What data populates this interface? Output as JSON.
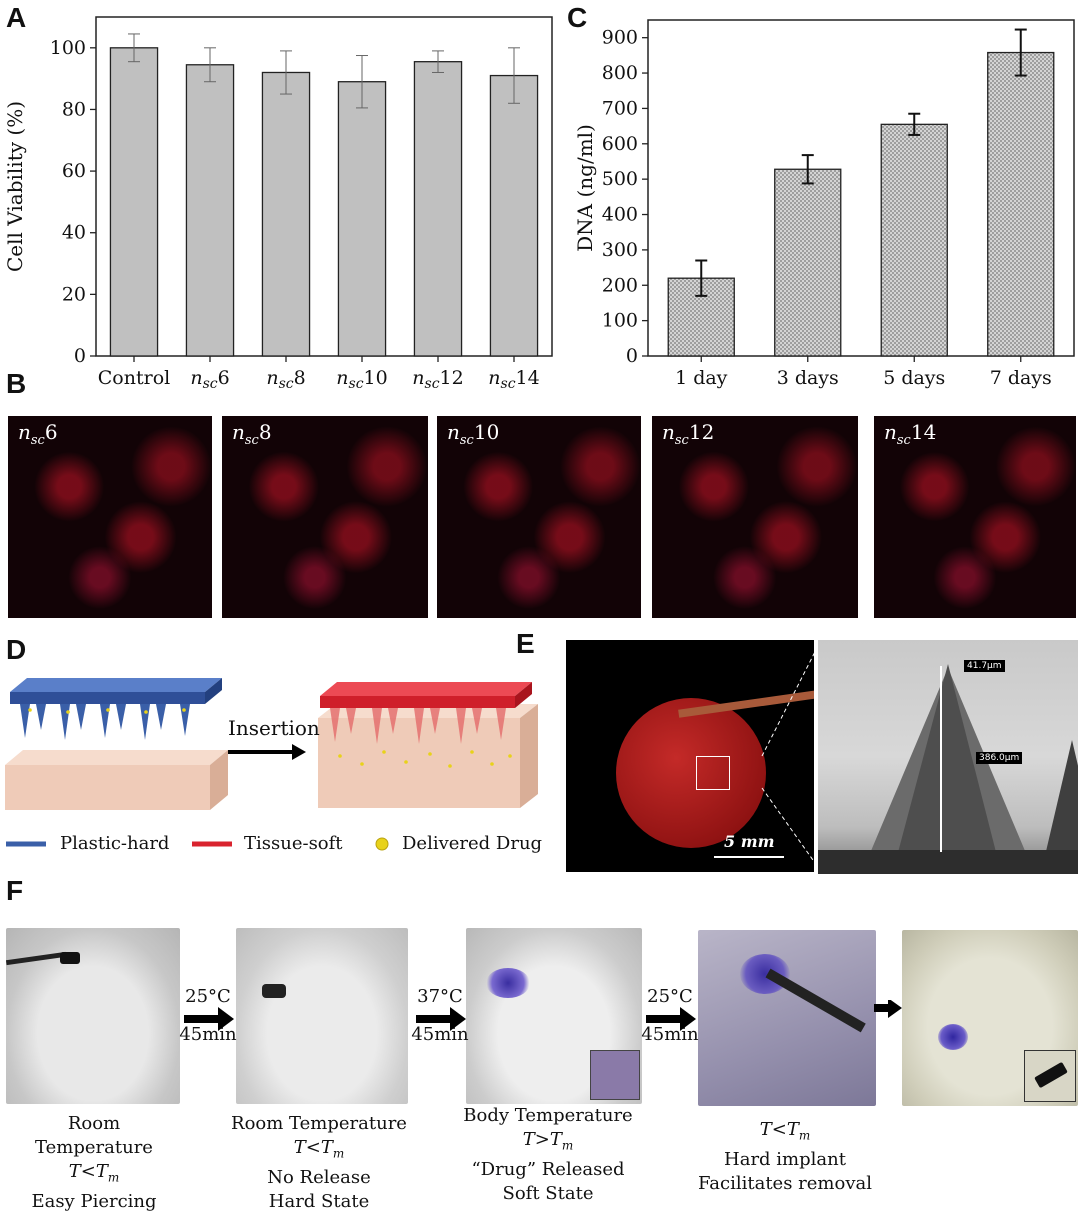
{
  "panels": {
    "a": "A",
    "b": "B",
    "c": "C",
    "d": "D",
    "e": "E",
    "f": "F"
  },
  "chart_data": [
    {
      "type": "bar",
      "panel": "A",
      "categories": [
        "Control",
        "nsc6",
        "nsc8",
        "nsc10",
        "nsc12",
        "nsc14"
      ],
      "category_labels": [
        {
          "main": "Control",
          "sub": "",
          "num": ""
        },
        {
          "main": "n",
          "sub": "sc",
          "num": "6"
        },
        {
          "main": "n",
          "sub": "sc",
          "num": "8"
        },
        {
          "main": "n",
          "sub": "sc",
          "num": "10"
        },
        {
          "main": "n",
          "sub": "sc",
          "num": "12"
        },
        {
          "main": "n",
          "sub": "sc",
          "num": "14"
        }
      ],
      "values": [
        100,
        94.5,
        92,
        89,
        95.5,
        91
      ],
      "errors": [
        4.5,
        5.5,
        7,
        8.5,
        3.5,
        9
      ],
      "ylabel": "Cell Viability (%)",
      "xlabel": "",
      "ylim": [
        0,
        110
      ],
      "yticks": [
        0,
        20,
        40,
        60,
        80,
        100
      ],
      "bar_color": "#c0c0c0"
    },
    {
      "type": "bar",
      "panel": "C",
      "categories": [
        "1 day",
        "3 days",
        "5 days",
        "7 days"
      ],
      "values": [
        220,
        528,
        655,
        858
      ],
      "errors": [
        50,
        40,
        30,
        65
      ],
      "ylabel": "DNA (ng/ml)",
      "xlabel": "",
      "ylim": [
        0,
        950
      ],
      "yticks": [
        0,
        100,
        200,
        300,
        400,
        500,
        600,
        700,
        800,
        900
      ],
      "bar_color": "#c8c8c8"
    }
  ],
  "micrographs": [
    {
      "main": "n",
      "sub": "sc",
      "num": "6"
    },
    {
      "main": "n",
      "sub": "sc",
      "num": "8"
    },
    {
      "main": "n",
      "sub": "sc",
      "num": "10"
    },
    {
      "main": "n",
      "sub": "sc",
      "num": "12"
    },
    {
      "main": "n",
      "sub": "sc",
      "num": "14"
    }
  ],
  "panel_d": {
    "insertion_label": "Insertion",
    "legend": {
      "plastic": "Plastic-hard",
      "tissue": "Tissue-soft",
      "drug": "Delivered Drug"
    },
    "colors": {
      "plastic": "#3a5fa8",
      "tissue": "#d9232e",
      "drug": "#e8d21a",
      "skin": "#efcbb8"
    }
  },
  "panel_e": {
    "scale_bar": "5 mm",
    "sem_width": "41.7μm",
    "sem_height": "386.0μm"
  },
  "panel_f": {
    "steps": [
      {
        "l1": "Room Temperature",
        "l2": "T<T",
        "l2sub": "m",
        "l3": "Easy Piercing",
        "l4": ""
      },
      {
        "l1": "Room Temperature",
        "l2": "T<T",
        "l2sub": "m",
        "l3": "No Release",
        "l4": "Hard State"
      },
      {
        "l1": "Body Temperature",
        "l2": "T>T",
        "l2sub": "m",
        "l3": "“Drug” Released",
        "l4": "Soft State"
      },
      {
        "l1": "",
        "l2": "T<T",
        "l2sub": "m",
        "l3": "Hard implant",
        "l4": "Facilitates removal"
      }
    ],
    "arrows": [
      {
        "temp": "25°C",
        "time": "45min"
      },
      {
        "temp": "37°C",
        "time": "45min"
      },
      {
        "temp": "25°C",
        "time": "45min"
      }
    ]
  }
}
